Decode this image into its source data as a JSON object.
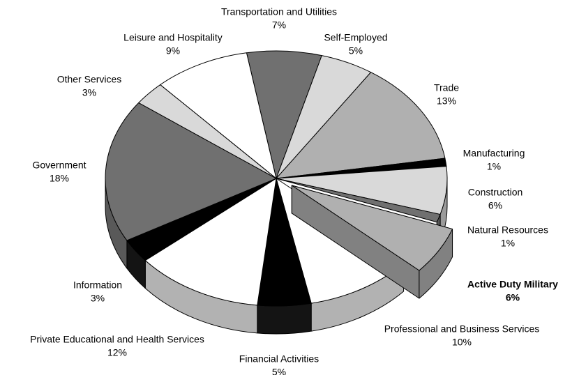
{
  "chart_data": {
    "type": "pie3d",
    "categories": [
      "Transportation and Utilities",
      "Self-Employed",
      "Trade",
      "Manufacturing",
      "Construction",
      "Natural Resources",
      "Active Duty Military",
      "Professional and Business Services",
      "Financial Activities",
      "Private Educational and Health Services",
      "Information",
      "Government",
      "Other Services",
      "Leisure and Hospitality"
    ],
    "values": [
      7,
      5,
      13,
      1,
      6,
      1,
      6,
      10,
      5,
      12,
      3,
      18,
      3,
      9
    ],
    "value_labels": [
      "7%",
      "5%",
      "13%",
      "1%",
      "6%",
      "1%",
      "6%",
      "10%",
      "5%",
      "12%",
      "3%",
      "18%",
      "3%",
      "9%"
    ],
    "colors": [
      "#707070",
      "#d9d9d9",
      "#b0b0b0",
      "#000000",
      "#d9d9d9",
      "#707070",
      "#b0b0b0",
      "#ffffff",
      "#000000",
      "#ffffff",
      "#000000",
      "#707070",
      "#d9d9d9",
      "#ffffff"
    ],
    "exploded": [
      6
    ]
  }
}
